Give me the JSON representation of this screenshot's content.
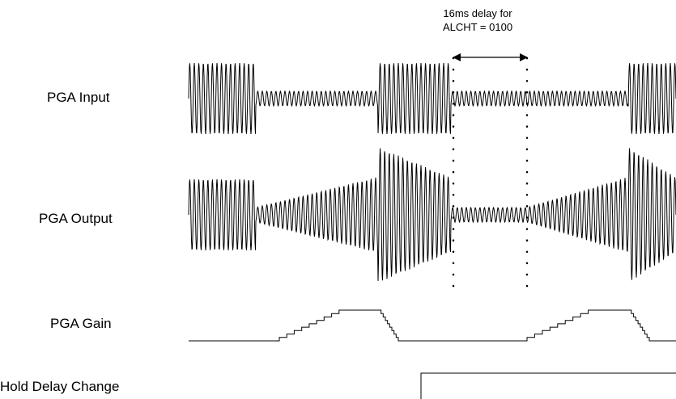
{
  "labels": {
    "pga_input": "PGA Input",
    "pga_output": "PGA Output",
    "pga_gain": "PGA Gain",
    "hold_delay_change": "Hold Delay Change"
  },
  "annotation": {
    "line1": "16ms delay for",
    "line2": "ALCHT = 0100"
  }
}
